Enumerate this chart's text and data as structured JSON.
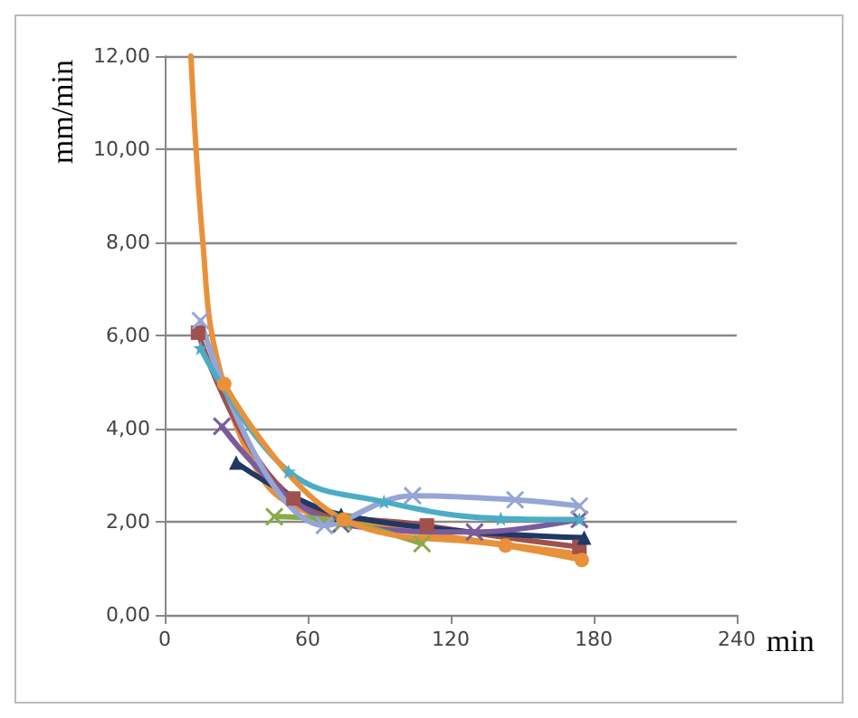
{
  "chart_data": {
    "type": "line",
    "xlabel": "min",
    "ylabel": "mm/min",
    "xlim": [
      0,
      240
    ],
    "xticks": [
      0,
      60,
      120,
      180,
      240
    ],
    "ylim": [
      0,
      12
    ],
    "yticks": [
      {
        "value": 0,
        "label": "0,00"
      },
      {
        "value": 2,
        "label": "2,00"
      },
      {
        "value": 4,
        "label": "4,00"
      },
      {
        "value": 6,
        "label": "6,00"
      },
      {
        "value": 8,
        "label": "8,00"
      },
      {
        "value": 10,
        "label": "10,00"
      },
      {
        "value": 12,
        "label": "12,00"
      }
    ],
    "grid": "y",
    "line_style": "solid",
    "series": [
      {
        "color": "#e8913a",
        "marker": "none",
        "x": [
          11,
          16,
          22,
          40,
          60,
          90,
          130,
          175
        ],
        "values": [
          12,
          8,
          5.5,
          3,
          2.2,
          1.9,
          1.6,
          1.3
        ]
      },
      {
        "color": "#a0504d",
        "marker": "square",
        "x": [
          14,
          54,
          110,
          174
        ],
        "values": [
          6.06,
          2.5,
          1.92,
          1.46
        ]
      },
      {
        "color": "#1f3864",
        "marker": "triangle",
        "x": [
          30,
          74,
          176
        ],
        "values": [
          3.27,
          2.15,
          1.66
        ]
      },
      {
        "color": "#7a5c9c",
        "marker": "cross",
        "x": [
          24,
          74,
          130,
          174
        ],
        "values": [
          4.05,
          1.95,
          1.78,
          2.05
        ]
      },
      {
        "color": "#8aaa4a",
        "marker": "cross",
        "x": [
          46,
          75,
          108
        ],
        "values": [
          2.11,
          2.0,
          1.53
        ]
      },
      {
        "color": "#95a5d5",
        "marker": "cross",
        "x": [
          15,
          67,
          104,
          147,
          174
        ],
        "values": [
          6.32,
          1.92,
          2.56,
          2.47,
          2.34
        ]
      },
      {
        "color": "#4bacc6",
        "marker": "star",
        "x": [
          15,
          52,
          92,
          141,
          174
        ],
        "values": [
          5.73,
          3.08,
          2.43,
          2.07,
          2.05
        ]
      },
      {
        "color": "#e8913a",
        "marker": "circle",
        "x": [
          25,
          75,
          143,
          175
        ],
        "values": [
          4.96,
          2.05,
          1.49,
          1.18
        ]
      }
    ]
  }
}
